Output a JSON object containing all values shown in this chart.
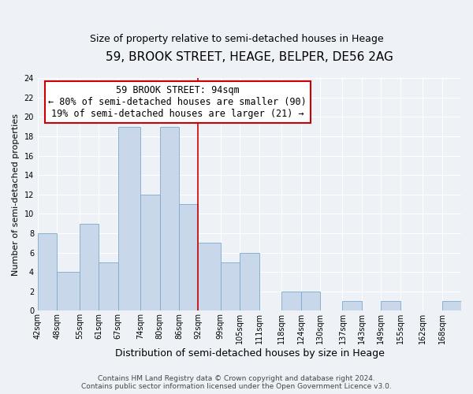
{
  "title": "59, BROOK STREET, HEAGE, BELPER, DE56 2AG",
  "subtitle": "Size of property relative to semi-detached houses in Heage",
  "xlabel": "Distribution of semi-detached houses by size in Heage",
  "ylabel": "Number of semi-detached properties",
  "footer_line1": "Contains HM Land Registry data © Crown copyright and database right 2024.",
  "footer_line2": "Contains public sector information licensed under the Open Government Licence v3.0.",
  "bin_labels": [
    "42sqm",
    "48sqm",
    "55sqm",
    "61sqm",
    "67sqm",
    "74sqm",
    "80sqm",
    "86sqm",
    "92sqm",
    "99sqm",
    "105sqm",
    "111sqm",
    "118sqm",
    "124sqm",
    "130sqm",
    "137sqm",
    "143sqm",
    "149sqm",
    "155sqm",
    "162sqm",
    "168sqm"
  ],
  "counts": [
    8,
    4,
    9,
    5,
    19,
    12,
    19,
    11,
    7,
    5,
    6,
    0,
    2,
    2,
    0,
    1,
    0,
    1,
    0,
    0,
    1
  ],
  "bin_edges": [
    42,
    48,
    55,
    61,
    67,
    74,
    80,
    86,
    92,
    99,
    105,
    111,
    118,
    124,
    130,
    137,
    143,
    149,
    155,
    162,
    168,
    174
  ],
  "bar_color": "#c8d8ea",
  "bar_edge_color": "#7aaacb",
  "vline_color": "#cc0000",
  "vline_x": 92,
  "ylim": [
    0,
    24
  ],
  "yticks": [
    0,
    2,
    4,
    6,
    8,
    10,
    12,
    14,
    16,
    18,
    20,
    22,
    24
  ],
  "annotation_title": "59 BROOK STREET: 94sqm",
  "annotation_line1": "← 80% of semi-detached houses are smaller (90)",
  "annotation_line2": "19% of semi-detached houses are larger (21) →",
  "annotation_box_color": "#ffffff",
  "annotation_box_edge": "#cc0000",
  "background_color": "#eef2f7",
  "grid_color": "#ffffff",
  "title_fontsize": 11,
  "subtitle_fontsize": 9,
  "xlabel_fontsize": 9,
  "ylabel_fontsize": 8,
  "tick_fontsize": 7,
  "footer_fontsize": 6.5,
  "annotation_fontsize": 8.5,
  "annotation_title_fontsize": 9
}
